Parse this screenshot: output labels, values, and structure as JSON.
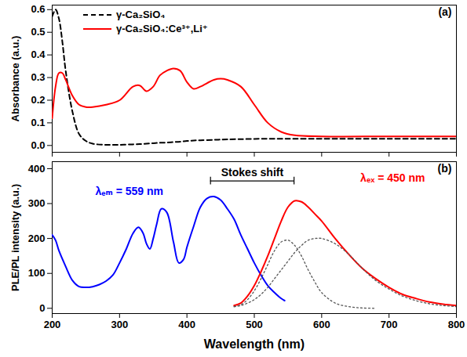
{
  "chart_data": [
    {
      "type": "line",
      "label": "(a)",
      "ylabel": "Absorbance (a.u.)",
      "xlim": [
        200,
        800
      ],
      "xticks": [
        200,
        300,
        400,
        500,
        600,
        700,
        800
      ],
      "ylim": [
        -0.03,
        0.62
      ],
      "yticks": [
        {
          "value": 0,
          "label": "0.0"
        },
        0.1,
        0.2,
        0.3,
        0.4,
        0.5,
        0.6
      ],
      "tick_labels": "y",
      "legend": "upper left",
      "series": [
        {
          "name": "γ-Ca₂SiO₄",
          "color": "#000000",
          "line_style": "dashed",
          "x": [
            200,
            205,
            210,
            215,
            220,
            230,
            240,
            250,
            260,
            280,
            300,
            320,
            330,
            340,
            350,
            360,
            370,
            380,
            390,
            400,
            410,
            420,
            440,
            450,
            460,
            480,
            500,
            520,
            540,
            560,
            600,
            700,
            800
          ],
          "values": [
            0.57,
            0.6,
            0.56,
            0.46,
            0.33,
            0.15,
            0.05,
            0.02,
            0.008,
            0.003,
            0.003,
            0.005,
            0.006,
            0.008,
            0.01,
            0.012,
            0.013,
            0.015,
            0.017,
            0.02,
            0.022,
            0.023,
            0.025,
            0.026,
            0.027,
            0.028,
            0.029,
            0.03,
            0.03,
            0.03,
            0.03,
            0.03,
            0.03
          ]
        },
        {
          "name": "γ-Ca₂SiO₄:Ce³⁺,Li⁺",
          "color": "#ff0000",
          "line_style": "solid",
          "x": [
            200,
            205,
            210,
            215,
            220,
            230,
            240,
            250,
            260,
            280,
            300,
            320,
            330,
            340,
            350,
            360,
            370,
            380,
            390,
            400,
            410,
            420,
            440,
            450,
            460,
            480,
            500,
            520,
            540,
            560,
            600,
            700,
            800
          ],
          "values": [
            0.12,
            0.26,
            0.32,
            0.32,
            0.29,
            0.22,
            0.18,
            0.17,
            0.17,
            0.18,
            0.2,
            0.26,
            0.265,
            0.24,
            0.26,
            0.31,
            0.33,
            0.34,
            0.33,
            0.28,
            0.25,
            0.26,
            0.29,
            0.295,
            0.29,
            0.26,
            0.18,
            0.1,
            0.06,
            0.045,
            0.04,
            0.04,
            0.04
          ]
        }
      ]
    },
    {
      "type": "line",
      "label": "(b)",
      "ylabel": "PLE/PL intensity (a.u.)",
      "xlabel": "Wavelength (nm)",
      "xlim": [
        200,
        800
      ],
      "xticks": [
        200,
        300,
        400,
        500,
        600,
        700,
        800
      ],
      "ylim": [
        -15,
        420
      ],
      "yticks": [
        0,
        100,
        200,
        300,
        400
      ],
      "annotations": [
        {
          "text": "Stokes shift",
          "x": [
            435,
            559
          ],
          "y": 365
        }
      ],
      "series": [
        {
          "name": "λₑₘ = 559 nm",
          "color": "#0000ff",
          "line_style": "solid",
          "x": [
            200,
            205,
            210,
            220,
            230,
            240,
            250,
            260,
            270,
            280,
            290,
            300,
            310,
            320,
            328,
            335,
            340,
            345,
            350,
            355,
            362,
            370,
            380,
            388,
            395,
            400,
            410,
            420,
            430,
            440,
            450,
            460,
            470,
            480,
            490,
            500,
            510,
            520,
            530,
            540,
            545
          ],
          "values": [
            210,
            195,
            165,
            120,
            80,
            62,
            60,
            62,
            68,
            78,
            95,
            130,
            170,
            215,
            232,
            215,
            185,
            170,
            200,
            240,
            285,
            275,
            190,
            130,
            140,
            175,
            235,
            290,
            315,
            320,
            310,
            285,
            255,
            210,
            170,
            130,
            95,
            65,
            45,
            28,
            22
          ]
        },
        {
          "name": "λₑₓ = 450 nm",
          "color": "#ff0000",
          "line_style": "solid",
          "x": [
            470,
            480,
            490,
            500,
            510,
            520,
            530,
            540,
            550,
            560,
            570,
            580,
            590,
            600,
            620,
            640,
            660,
            680,
            700,
            720,
            740,
            760,
            780,
            800
          ],
          "values": [
            8,
            15,
            35,
            65,
            105,
            150,
            200,
            250,
            290,
            308,
            305,
            290,
            270,
            250,
            200,
            155,
            115,
            85,
            60,
            40,
            28,
            18,
            12,
            8
          ]
        },
        {
          "color": "#555555",
          "line_style": "dotted",
          "x": [
            470,
            480,
            490,
            500,
            510,
            520,
            530,
            540,
            550,
            560,
            570,
            580,
            590,
            600,
            620,
            640,
            660,
            680
          ],
          "values": [
            5,
            10,
            25,
            50,
            85,
            125,
            165,
            190,
            195,
            180,
            150,
            110,
            75,
            45,
            15,
            5,
            1,
            0
          ]
        },
        {
          "color": "#555555",
          "line_style": "dotted",
          "x": [
            470,
            480,
            490,
            500,
            510,
            520,
            530,
            540,
            550,
            560,
            570,
            580,
            590,
            600,
            620,
            640,
            660,
            680,
            700,
            720,
            740,
            760,
            780,
            800
          ],
          "values": [
            5,
            8,
            15,
            25,
            40,
            60,
            85,
            110,
            135,
            160,
            180,
            195,
            200,
            200,
            185,
            155,
            115,
            80,
            55,
            35,
            22,
            13,
            8,
            5
          ]
        }
      ]
    }
  ]
}
